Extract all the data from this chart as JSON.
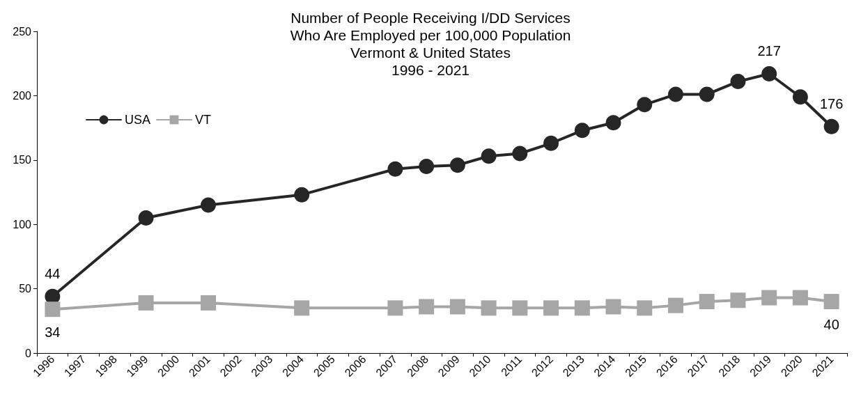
{
  "chart_data": {
    "type": "line",
    "title": "Number of People Receiving I/DD Services\nWho Are Employed per 100,000 Population\nVermont & United States\n1996 - 2021",
    "categories": [
      "1996",
      "1997",
      "1998",
      "1999",
      "2000",
      "2001",
      "2002",
      "2003",
      "2004",
      "2005",
      "2006",
      "2007",
      "2008",
      "2009",
      "2010",
      "2011",
      "2012",
      "2013",
      "2014",
      "2015",
      "2016",
      "2017",
      "2018",
      "2019",
      "2020",
      "2021"
    ],
    "series": [
      {
        "name": "USA",
        "color": "#262626",
        "marker": "circle",
        "values": [
          44,
          null,
          null,
          105,
          null,
          115,
          null,
          null,
          123,
          null,
          null,
          143,
          145,
          146,
          153,
          155,
          163,
          173,
          179,
          193,
          201,
          201,
          211,
          217,
          199,
          176
        ],
        "value_labels": [
          "44",
          null,
          null,
          null,
          null,
          null,
          null,
          null,
          null,
          null,
          null,
          null,
          null,
          null,
          null,
          null,
          null,
          null,
          null,
          null,
          null,
          null,
          null,
          "217",
          null,
          "176"
        ]
      },
      {
        "name": "VT",
        "color": "#a6a6a6",
        "marker": "square",
        "values": [
          34,
          null,
          null,
          39,
          null,
          39,
          null,
          null,
          35,
          null,
          null,
          35,
          36,
          36,
          35,
          35,
          35,
          35,
          36,
          35,
          37,
          40,
          41,
          43,
          43,
          40
        ],
        "value_labels": [
          "34",
          null,
          null,
          null,
          null,
          null,
          null,
          null,
          null,
          null,
          null,
          null,
          null,
          null,
          null,
          null,
          null,
          null,
          null,
          null,
          null,
          null,
          null,
          null,
          null,
          "40"
        ]
      }
    ],
    "ylim": [
      0,
      250
    ],
    "yticks": [
      0,
      50,
      100,
      150,
      200,
      250
    ],
    "grid": false,
    "legend": "top left"
  }
}
